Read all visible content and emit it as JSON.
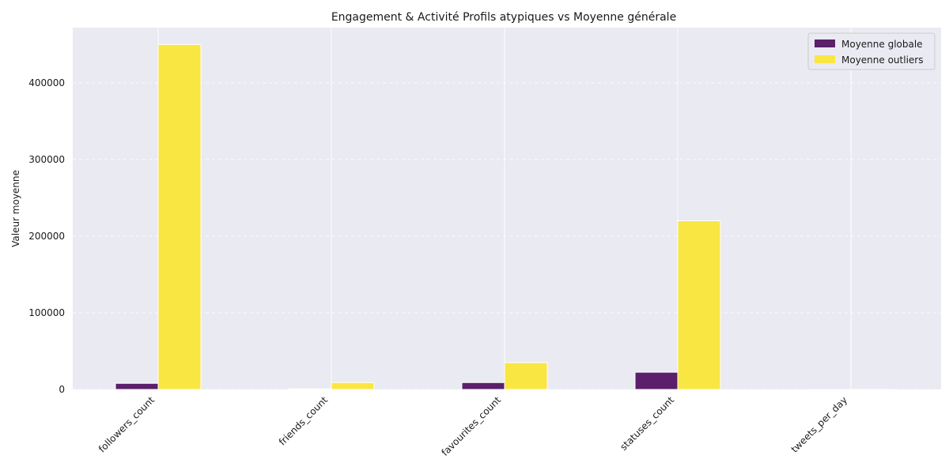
{
  "chart_data": {
    "type": "bar",
    "title": "Engagement & Activité  Profils atypiques vs Moyenne générale",
    "xlabel": "",
    "ylabel": "Valeur moyenne",
    "categories": [
      "followers_count",
      "friends_count",
      "favourites_count",
      "statuses_count",
      "tweets_per_day"
    ],
    "series": [
      {
        "name": "Moyenne globale",
        "color": "#5b1f6b",
        "values": [
          8000,
          800,
          9000,
          22500,
          12
        ]
      },
      {
        "name": "Moyenne outliers",
        "color": "#fae642",
        "values": [
          450000,
          9000,
          35000,
          220000,
          60
        ]
      }
    ],
    "ylim": [
      0,
      472000
    ],
    "yticks": [
      0,
      100000,
      200000,
      300000,
      400000
    ],
    "ytick_labels": [
      "0",
      "100000",
      "200000",
      "300000",
      "400000"
    ],
    "grid": true,
    "legend_position": "top-right",
    "background_color": "#eaeaf2"
  }
}
